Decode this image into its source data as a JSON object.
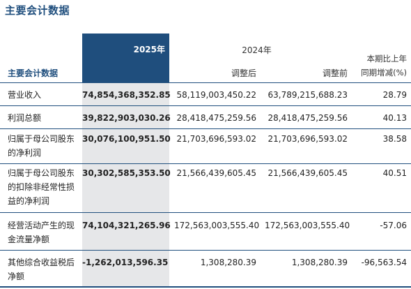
{
  "title": "主要会计数据",
  "table": {
    "header": {
      "label": "主要会计数据",
      "year_current": "2025年",
      "year_prior": "2024年",
      "prior_adjusted": "调整后",
      "prior_before": "调整前",
      "change_line1": "本期比上年",
      "change_line2": "同期增减(%)"
    },
    "rows": [
      {
        "label": "营业收入",
        "v2025": "74,854,368,352.85",
        "adjusted": "58,119,003,450.22",
        "before": "63,789,215,688.23",
        "change": "28.79"
      },
      {
        "label": "利润总额",
        "v2025": "39,822,903,030.26",
        "adjusted": "28,418,475,259.56",
        "before": "28,418,475,259.56",
        "change": "40.13"
      },
      {
        "label": "归属于母公司股东的净利润",
        "v2025": "30,076,100,951.50",
        "adjusted": "21,703,696,593.02",
        "before": "21,703,696,593.02",
        "change": "38.58"
      },
      {
        "label": "归属于母公司股东的扣除非经常性损益的净利润",
        "v2025": "30,302,585,353.50",
        "adjusted": "21,566,439,605.45",
        "before": "21,566,439,605.45",
        "change": "40.51"
      },
      {
        "label": "经营活动产生的现金流量净额",
        "v2025": "74,104,321,265.96",
        "adjusted": "172,563,003,555.40",
        "before": "172,563,003,555.40",
        "change": "-57.06"
      },
      {
        "label": "其他综合收益税后净额",
        "v2025": "-1,262,013,596.35",
        "adjusted": "1,308,280.39",
        "before": "1,308,280.39",
        "change": "-96,563.54"
      }
    ]
  }
}
